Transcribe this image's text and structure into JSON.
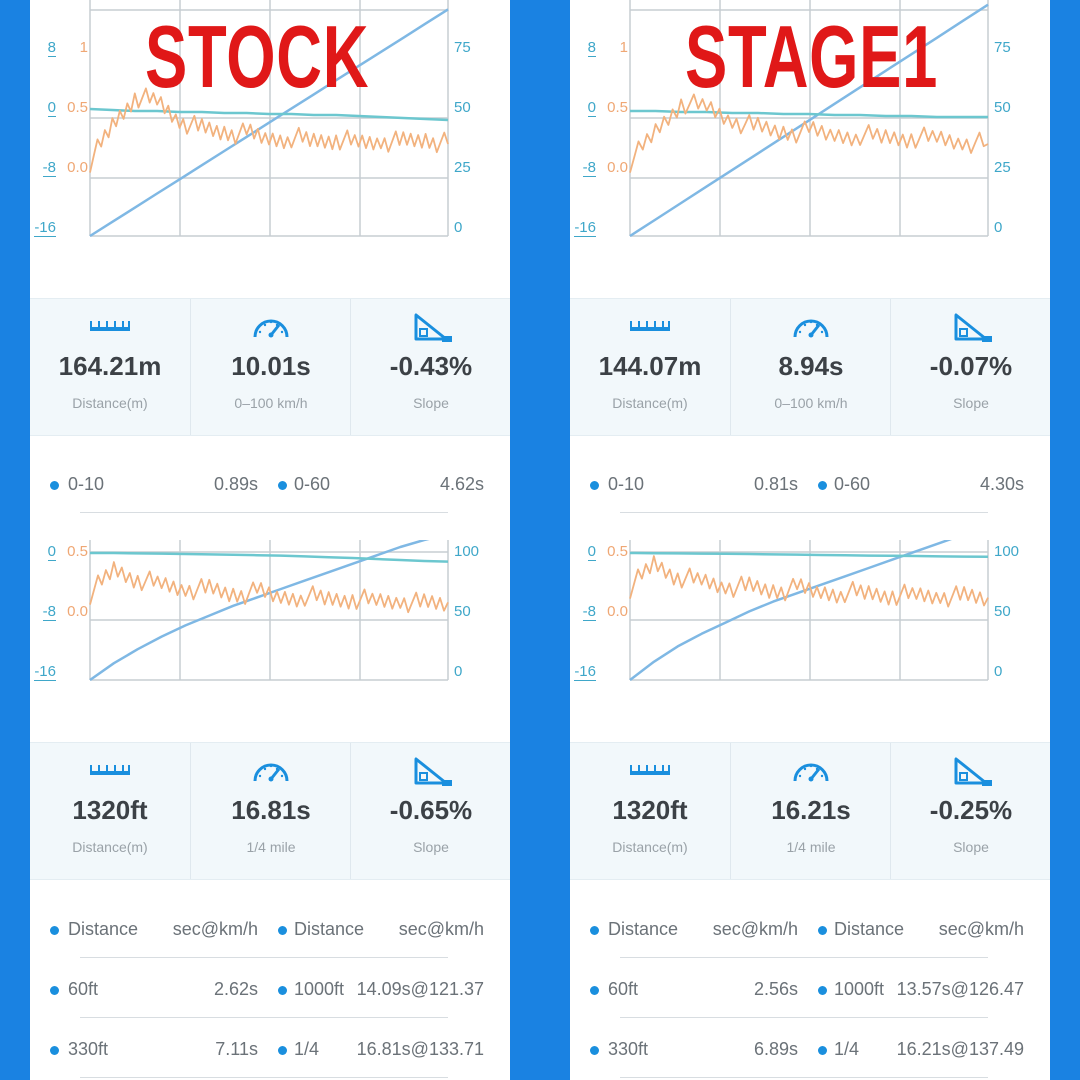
{
  "panels": [
    {
      "id": "stock-accel",
      "header": "STOCK",
      "axis": {
        "left1": [
          "8",
          "0",
          "-8",
          "-16"
        ],
        "left2": [
          "1",
          "0.5",
          "0.0"
        ],
        "right": [
          "75",
          "50",
          "25",
          "0"
        ]
      },
      "stats": [
        {
          "icon": "ruler-icon",
          "value": "164.21m",
          "label": "Distance(m)"
        },
        {
          "icon": "speedometer-icon",
          "value": "10.01s",
          "label": "0–100 km/h"
        },
        {
          "icon": "slope-icon",
          "value": "-0.43%",
          "label": "Slope"
        }
      ],
      "rows": [
        {
          "name1": "0-10",
          "val1": "0.89s",
          "name2": "0-60",
          "val2": "4.62s"
        }
      ]
    },
    {
      "id": "stage1-accel",
      "header": "STAGE1",
      "axis": {
        "left1": [
          "8",
          "0",
          "-8",
          "-16"
        ],
        "left2": [
          "1",
          "0.5",
          "0.0"
        ],
        "right": [
          "75",
          "50",
          "25",
          "0"
        ]
      },
      "stats": [
        {
          "icon": "ruler-icon",
          "value": "144.07m",
          "label": "Distance(m)"
        },
        {
          "icon": "speedometer-icon",
          "value": "8.94s",
          "label": "0–100 km/h"
        },
        {
          "icon": "slope-icon",
          "value": "-0.07%",
          "label": "Slope"
        }
      ],
      "rows": [
        {
          "name1": "0-10",
          "val1": "0.81s",
          "name2": "0-60",
          "val2": "4.30s"
        }
      ]
    },
    {
      "id": "stock-quarter",
      "header": "",
      "axis": {
        "left1": [
          "0",
          "-8",
          "-16"
        ],
        "left2": [
          "0.5",
          "0.0"
        ],
        "right": [
          "100",
          "50",
          "0"
        ]
      },
      "stats": [
        {
          "icon": "ruler-icon",
          "value": "1320ft",
          "label": "Distance(m)"
        },
        {
          "icon": "speedometer-icon",
          "value": "16.81s",
          "label": "1/4 mile"
        },
        {
          "icon": "slope-icon",
          "value": "-0.65%",
          "label": "Slope"
        }
      ],
      "rows": [
        {
          "name1": "Distance",
          "val1": "sec@km/h",
          "name2": "Distance",
          "val2": "sec@km/h"
        },
        {
          "name1": "60ft",
          "val1": "2.62s",
          "name2": "1000ft",
          "val2": "14.09s@121.37"
        },
        {
          "name1": "330ft",
          "val1": "7.11s",
          "name2": "1/4",
          "val2": "16.81s@133.71"
        }
      ]
    },
    {
      "id": "stage1-quarter",
      "header": "",
      "axis": {
        "left1": [
          "0",
          "-8",
          "-16"
        ],
        "left2": [
          "0.5",
          "0.0"
        ],
        "right": [
          "100",
          "50",
          "0"
        ]
      },
      "stats": [
        {
          "icon": "ruler-icon",
          "value": "1320ft",
          "label": "Distance(m)"
        },
        {
          "icon": "speedometer-icon",
          "value": "16.21s",
          "label": "1/4 mile"
        },
        {
          "icon": "slope-icon",
          "value": "-0.25%",
          "label": "Slope"
        }
      ],
      "rows": [
        {
          "name1": "Distance",
          "val1": "sec@km/h",
          "name2": "Distance",
          "val2": "sec@km/h"
        },
        {
          "name1": "60ft",
          "val1": "2.56s",
          "name2": "1000ft",
          "val2": "13.57s@126.47"
        },
        {
          "name1": "330ft",
          "val1": "6.89s",
          "name2": "1/4",
          "val2": "16.21s@137.49"
        }
      ]
    }
  ],
  "colors": {
    "speed": "#7fb8e4",
    "slope": "#6cc7cf",
    "accel": "#f2b27e",
    "grid": "#c7cdd2",
    "brand": "#1a82e2",
    "header": "#e01818"
  },
  "chart_data": [
    {
      "type": "line",
      "panel": "stock-accel",
      "series": [
        {
          "values": [
            0,
            6,
            12,
            18,
            24,
            30,
            36,
            42,
            48,
            54,
            60,
            66,
            72,
            78,
            84,
            90,
            96
          ]
        },
        {
          "values": [
            0.3,
            0.25,
            0.2,
            0.2,
            0.15,
            0.15,
            0.1,
            0.1,
            0.05,
            0.05,
            0.0,
            0.0,
            -0.05,
            -0.1,
            -0.15,
            -0.2,
            -0.25
          ]
        },
        {
          "values": [
            0.05,
            0.35,
            0.6,
            0.55,
            0.4,
            0.32,
            0.3,
            0.28,
            0.24,
            0.26,
            0.22,
            0.25,
            0.2,
            0.23,
            0.21,
            0.24,
            0.2
          ]
        }
      ]
    },
    {
      "type": "line",
      "panel": "stage1-accel",
      "series": [
        {
          "values": [
            0,
            7,
            14,
            21,
            28,
            35,
            42,
            49,
            56,
            63,
            70,
            77,
            84,
            91,
            98
          ]
        },
        {
          "values": [
            0.2,
            0.2,
            0.15,
            0.15,
            0.1,
            0.1,
            0.05,
            0.05,
            0.0,
            0.0,
            -0.05,
            -0.05,
            -0.1,
            -0.1,
            -0.1
          ]
        },
        {
          "values": [
            0.05,
            0.3,
            0.55,
            0.5,
            0.4,
            0.33,
            0.3,
            0.3,
            0.27,
            0.28,
            0.25,
            0.26,
            0.24,
            0.22,
            0.2
          ]
        }
      ]
    },
    {
      "type": "line",
      "panel": "stock-quarter",
      "series": [
        {
          "values": [
            0,
            12,
            22,
            31,
            39,
            46,
            53,
            59,
            65,
            71,
            77,
            83,
            89,
            95,
            100,
            104
          ]
        },
        {
          "values": [
            0.35,
            0.35,
            0.33,
            0.32,
            0.3,
            0.28,
            0.26,
            0.24,
            0.22,
            0.18,
            0.14,
            0.1,
            0.05,
            0.0,
            -0.05,
            -0.08
          ]
        },
        {
          "values": [
            0.15,
            0.35,
            0.28,
            0.22,
            0.2,
            0.18,
            0.15,
            0.16,
            0.12,
            0.14,
            0.1,
            0.12,
            0.08,
            0.1,
            0.06,
            0.08
          ]
        }
      ]
    },
    {
      "type": "line",
      "panel": "stage1-quarter",
      "series": [
        {
          "values": [
            0,
            13,
            24,
            33,
            41,
            49,
            56,
            62,
            68,
            74,
            80,
            86,
            92,
            98,
            104,
            110
          ]
        },
        {
          "values": [
            0.35,
            0.34,
            0.33,
            0.32,
            0.31,
            0.3,
            0.28,
            0.27,
            0.25,
            0.24,
            0.22,
            0.21,
            0.2,
            0.18,
            0.17,
            0.16
          ]
        },
        {
          "values": [
            0.2,
            0.4,
            0.3,
            0.25,
            0.22,
            0.2,
            0.18,
            0.19,
            0.16,
            0.17,
            0.15,
            0.15,
            0.13,
            0.14,
            0.12,
            0.12
          ]
        }
      ]
    }
  ]
}
